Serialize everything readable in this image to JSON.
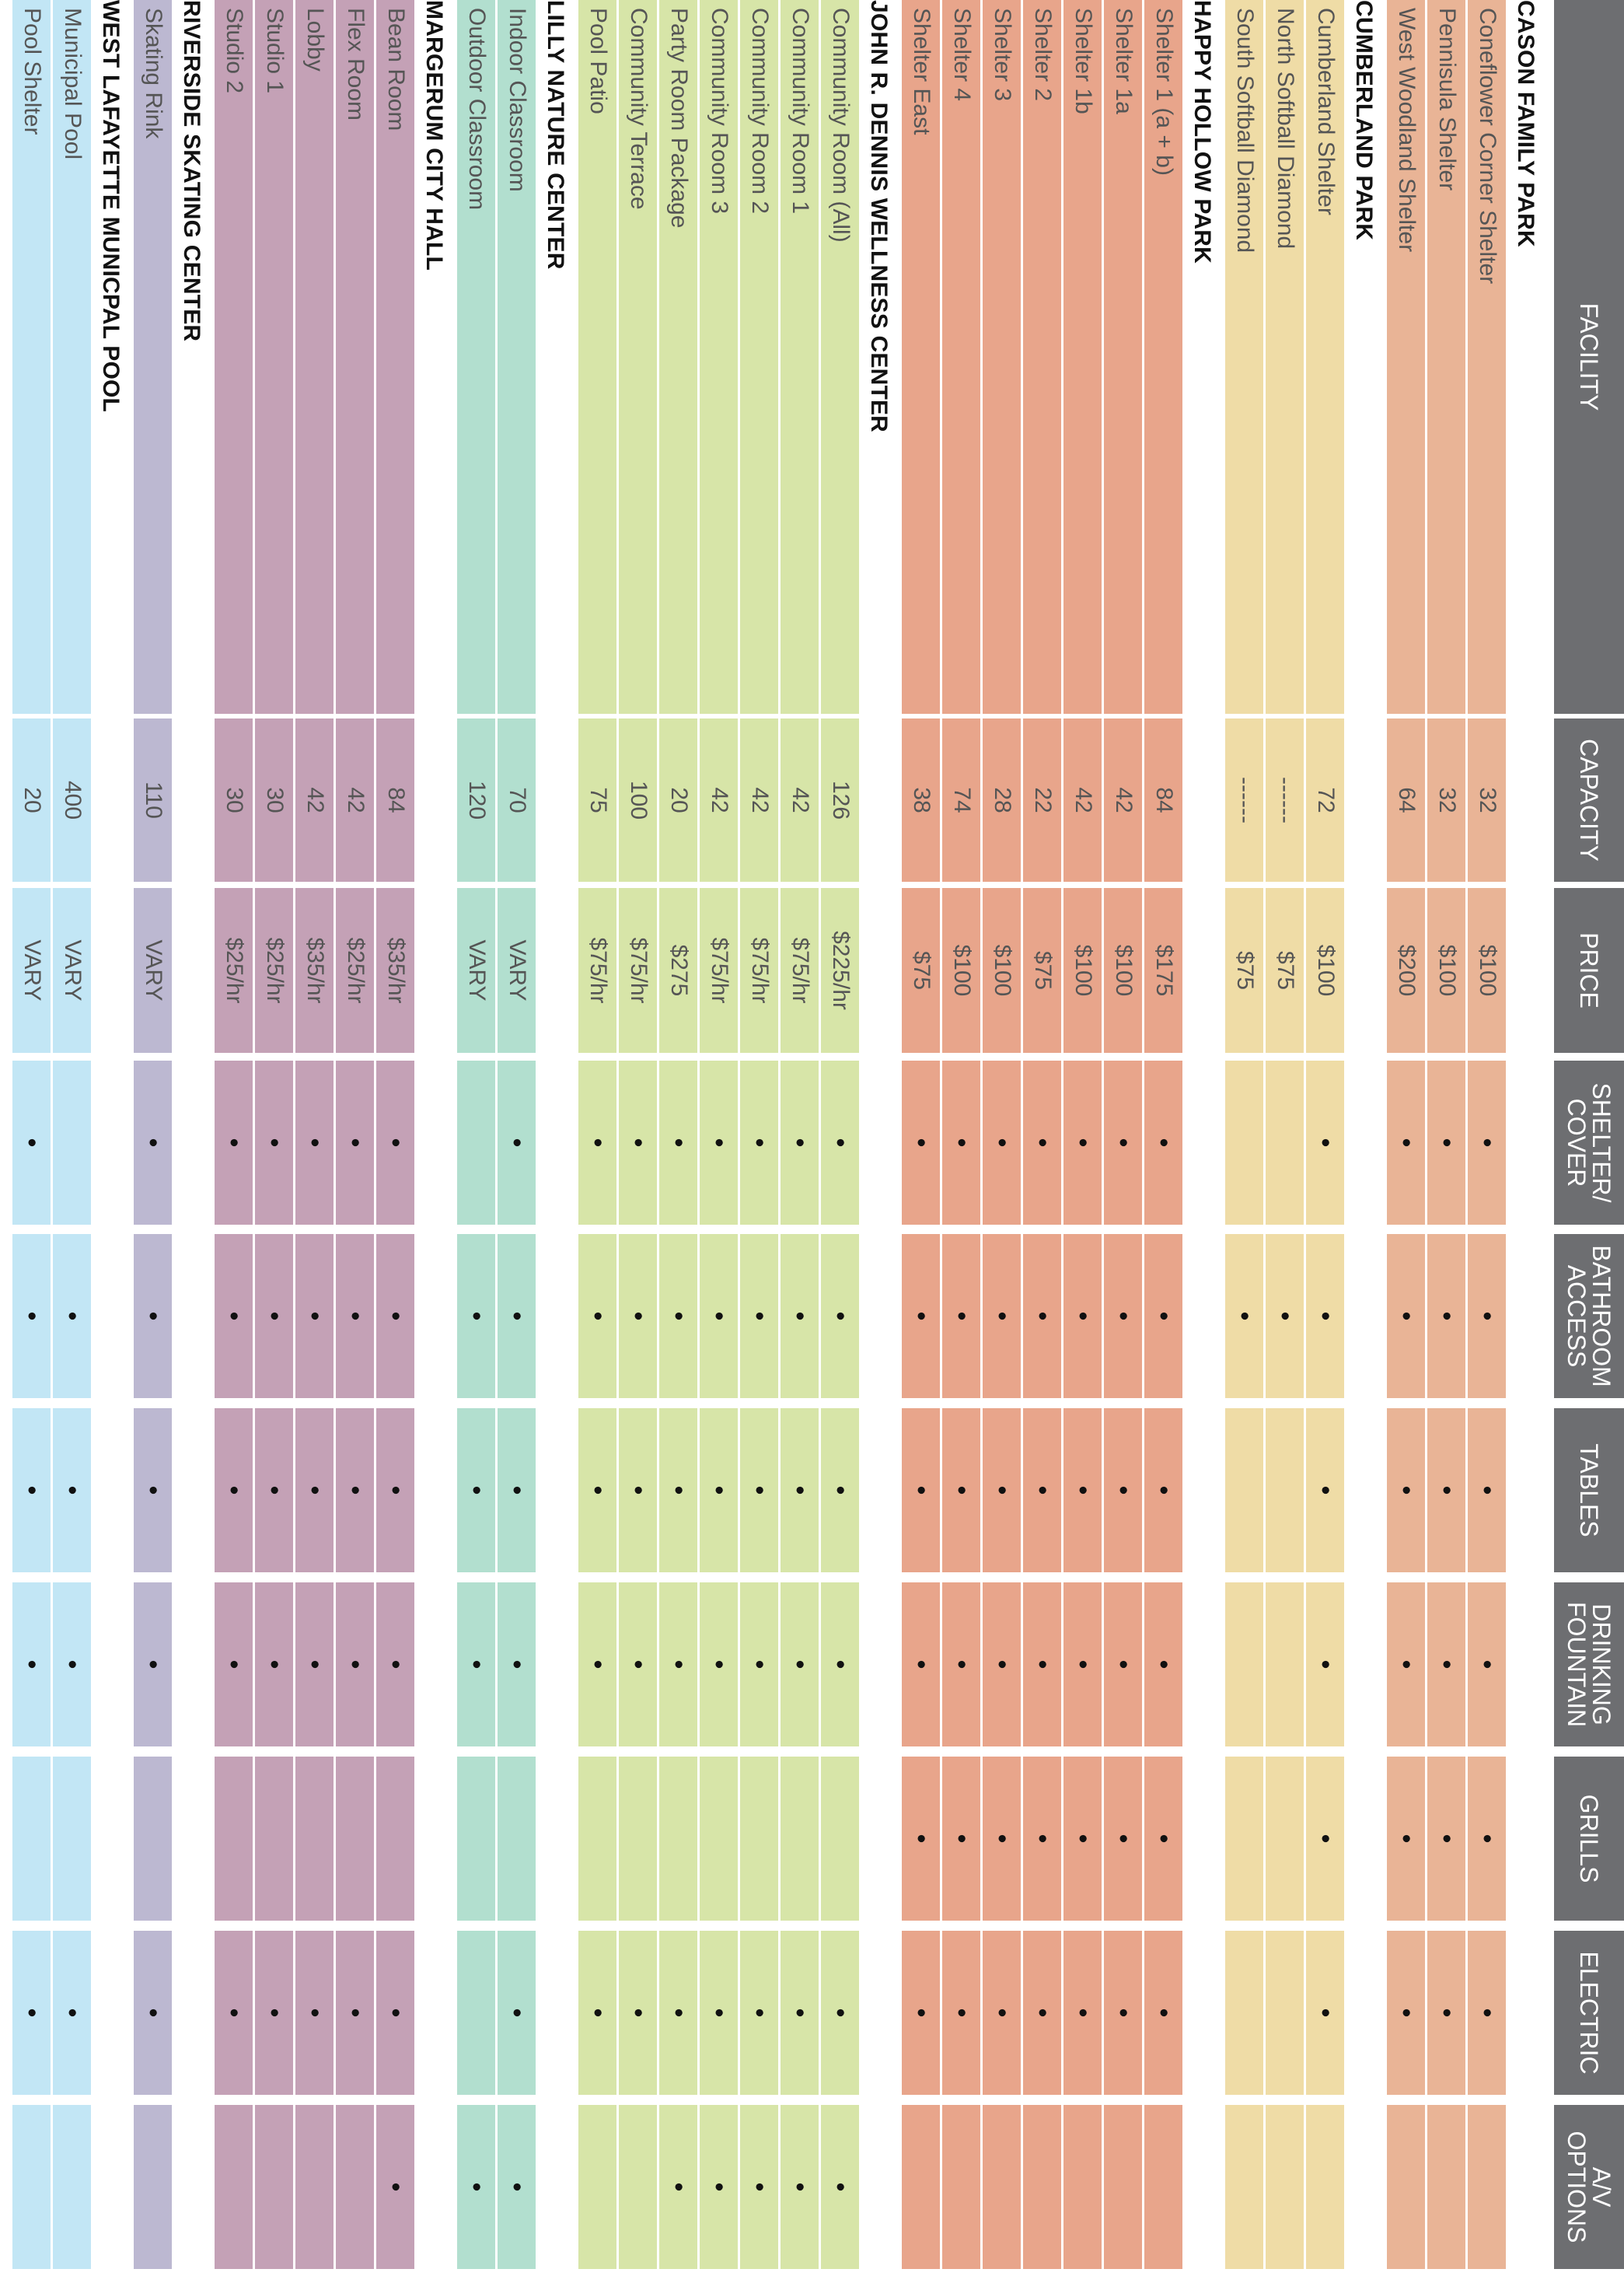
{
  "headers": [
    "FACILITY",
    "CAPACITY",
    "PRICE",
    "SHELTER/\nCOVER",
    "BATHROOM\nACCESS",
    "TABLES",
    "DRINKING\nFOUNTAIN",
    "GRILLS",
    "ELECTRIC",
    "A/V\nOPTIONS"
  ],
  "amenity_keys": [
    "shelter",
    "bathroom",
    "tables",
    "fountain",
    "grills",
    "electric",
    "av"
  ],
  "dot_symbol": "•",
  "groups": [
    {
      "title": "CASON FAMILY PARK",
      "color": "#e9b496",
      "rows": [
        {
          "name": "Coneflower Corner Shelter",
          "capacity": "32",
          "price": "$100",
          "shelter": true,
          "bathroom": true,
          "tables": true,
          "fountain": true,
          "grills": true,
          "electric": true,
          "av": false
        },
        {
          "name": "Pennisula Shelter",
          "capacity": "32",
          "price": "$100",
          "shelter": true,
          "bathroom": true,
          "tables": true,
          "fountain": true,
          "grills": true,
          "electric": true,
          "av": false
        },
        {
          "name": "West Woodland Shelter",
          "capacity": "64",
          "price": "$200",
          "shelter": true,
          "bathroom": true,
          "tables": true,
          "fountain": true,
          "grills": true,
          "electric": true,
          "av": false
        }
      ]
    },
    {
      "title": "CUMBERLAND PARK",
      "color": "#efdca6",
      "rows": [
        {
          "name": "Cumberland Shelter",
          "capacity": "72",
          "price": "$100",
          "shelter": true,
          "bathroom": true,
          "tables": true,
          "fountain": true,
          "grills": true,
          "electric": true,
          "av": false
        },
        {
          "name": "North Softball Diamond",
          "capacity": "------",
          "price": "$75",
          "shelter": false,
          "bathroom": true,
          "tables": false,
          "fountain": false,
          "grills": false,
          "electric": false,
          "av": false
        },
        {
          "name": "South Softball Diamond",
          "capacity": "------",
          "price": "$75",
          "shelter": false,
          "bathroom": true,
          "tables": false,
          "fountain": false,
          "grills": false,
          "electric": false,
          "av": false
        }
      ]
    },
    {
      "title": "HAPPY HOLLOW PARK",
      "color": "#e8a58b",
      "rows": [
        {
          "name": "Shelter 1 (a + b)",
          "capacity": "84",
          "price": "$175",
          "shelter": true,
          "bathroom": true,
          "tables": true,
          "fountain": true,
          "grills": true,
          "electric": true,
          "av": false
        },
        {
          "name": "Shelter 1a",
          "capacity": "42",
          "price": "$100",
          "shelter": true,
          "bathroom": true,
          "tables": true,
          "fountain": true,
          "grills": true,
          "electric": true,
          "av": false
        },
        {
          "name": "Shelter 1b",
          "capacity": "42",
          "price": "$100",
          "shelter": true,
          "bathroom": true,
          "tables": true,
          "fountain": true,
          "grills": true,
          "electric": true,
          "av": false
        },
        {
          "name": "Shelter 2",
          "capacity": "22",
          "price": "$75",
          "shelter": true,
          "bathroom": true,
          "tables": true,
          "fountain": true,
          "grills": true,
          "electric": true,
          "av": false
        },
        {
          "name": "Shelter 3",
          "capacity": "28",
          "price": "$100",
          "shelter": true,
          "bathroom": true,
          "tables": true,
          "fountain": true,
          "grills": true,
          "electric": true,
          "av": false
        },
        {
          "name": "Shelter 4",
          "capacity": "74",
          "price": "$100",
          "shelter": true,
          "bathroom": true,
          "tables": true,
          "fountain": true,
          "grills": true,
          "electric": true,
          "av": false
        },
        {
          "name": "Shelter East",
          "capacity": "38",
          "price": "$75",
          "shelter": true,
          "bathroom": true,
          "tables": true,
          "fountain": true,
          "grills": true,
          "electric": true,
          "av": false
        }
      ]
    },
    {
      "title": "JOHN R. DENNIS WELLNESS CENTER",
      "color": "#d7e5a8",
      "rows": [
        {
          "name": "Community Room (All)",
          "capacity": "126",
          "price": "$225/hr",
          "shelter": true,
          "bathroom": true,
          "tables": true,
          "fountain": true,
          "grills": false,
          "electric": true,
          "av": true
        },
        {
          "name": "Community Room 1",
          "capacity": "42",
          "price": "$75/hr",
          "shelter": true,
          "bathroom": true,
          "tables": true,
          "fountain": true,
          "grills": false,
          "electric": true,
          "av": true
        },
        {
          "name": "Community Room 2",
          "capacity": "42",
          "price": "$75/hr",
          "shelter": true,
          "bathroom": true,
          "tables": true,
          "fountain": true,
          "grills": false,
          "electric": true,
          "av": true
        },
        {
          "name": "Community Room 3",
          "capacity": "42",
          "price": "$75/hr",
          "shelter": true,
          "bathroom": true,
          "tables": true,
          "fountain": true,
          "grills": false,
          "electric": true,
          "av": true
        },
        {
          "name": "Party Room Package",
          "capacity": "20",
          "price": "$275",
          "shelter": true,
          "bathroom": true,
          "tables": true,
          "fountain": true,
          "grills": false,
          "electric": true,
          "av": true
        },
        {
          "name": "Community Terrace",
          "capacity": "100",
          "price": "$75/hr",
          "shelter": true,
          "bathroom": true,
          "tables": true,
          "fountain": true,
          "grills": false,
          "electric": true,
          "av": false
        },
        {
          "name": "Pool Patio",
          "capacity": "75",
          "price": "$75/hr",
          "shelter": true,
          "bathroom": true,
          "tables": true,
          "fountain": true,
          "grills": false,
          "electric": true,
          "av": false
        }
      ]
    },
    {
      "title": "LILLY NATURE CENTER",
      "color": "#b2dfcf",
      "rows": [
        {
          "name": "Indoor Classroom",
          "capacity": "70",
          "price": "VARY",
          "shelter": true,
          "bathroom": true,
          "tables": true,
          "fountain": true,
          "grills": false,
          "electric": true,
          "av": true
        },
        {
          "name": "Outdoor Classroom",
          "capacity": "120",
          "price": "VARY",
          "shelter": false,
          "bathroom": true,
          "tables": true,
          "fountain": true,
          "grills": false,
          "electric": false,
          "av": true
        }
      ]
    },
    {
      "title": "MARGERUM CITY HALL",
      "color": "#c4a1b6",
      "rows": [
        {
          "name": "Bean Room",
          "capacity": "84",
          "price": "$35/hr",
          "shelter": true,
          "bathroom": true,
          "tables": true,
          "fountain": true,
          "grills": false,
          "electric": true,
          "av": true
        },
        {
          "name": "Flex Room",
          "capacity": "42",
          "price": "$25/hr",
          "shelter": true,
          "bathroom": true,
          "tables": true,
          "fountain": true,
          "grills": false,
          "electric": true,
          "av": false
        },
        {
          "name": "Lobby",
          "capacity": "42",
          "price": "$35/hr",
          "shelter": true,
          "bathroom": true,
          "tables": true,
          "fountain": true,
          "grills": false,
          "electric": true,
          "av": false
        },
        {
          "name": "Studio 1",
          "capacity": "30",
          "price": "$25/hr",
          "shelter": true,
          "bathroom": true,
          "tables": true,
          "fountain": true,
          "grills": false,
          "electric": true,
          "av": false
        },
        {
          "name": "Studio 2",
          "capacity": "30",
          "price": "$25/hr",
          "shelter": true,
          "bathroom": true,
          "tables": true,
          "fountain": true,
          "grills": false,
          "electric": true,
          "av": false
        }
      ]
    },
    {
      "title": "RIVERSIDE SKATING CENTER",
      "color": "#bcb8d1",
      "rows": [
        {
          "name": "Skating Rink",
          "capacity": "110",
          "price": "VARY",
          "shelter": true,
          "bathroom": true,
          "tables": true,
          "fountain": true,
          "grills": false,
          "electric": true,
          "av": false
        }
      ]
    },
    {
      "title": "WEST LAFAYETTE MUNICPAL POOL",
      "color": "#c2e6f5",
      "rows": [
        {
          "name": "Municipal Pool",
          "capacity": "400",
          "price": "VARY",
          "shelter": false,
          "bathroom": true,
          "tables": true,
          "fountain": true,
          "grills": false,
          "electric": true,
          "av": false
        },
        {
          "name": "Pool Shelter",
          "capacity": "20",
          "price": "VARY",
          "shelter": true,
          "bathroom": true,
          "tables": true,
          "fountain": true,
          "grills": false,
          "electric": true,
          "av": false
        }
      ]
    }
  ]
}
